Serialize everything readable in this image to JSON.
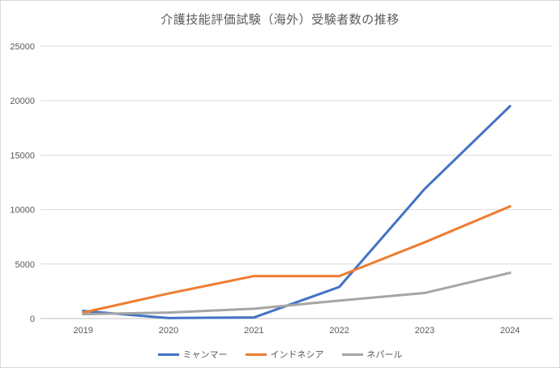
{
  "chart_data": {
    "type": "line",
    "title": "介護技能評価試験（海外）受験者数の推移",
    "categories": [
      "2019",
      "2020",
      "2021",
      "2022",
      "2023",
      "2024"
    ],
    "series": [
      {
        "name": "ミャンマー",
        "color": "#4472C4",
        "values": [
          700,
          50,
          100,
          2900,
          11900,
          19500
        ]
      },
      {
        "name": "インドネシア",
        "color": "#ED7D31",
        "values": [
          550,
          2300,
          3900,
          3900,
          7000,
          10300
        ]
      },
      {
        "name": "ネパール",
        "color": "#A5A5A5",
        "values": [
          400,
          550,
          900,
          1650,
          2350,
          4200
        ]
      }
    ],
    "xlabel": "",
    "ylabel": "",
    "ylim": [
      0,
      25000
    ],
    "y_tick_step": 5000,
    "y_tick_labels": [
      "0",
      "5000",
      "10000",
      "15000",
      "20000",
      "25000"
    ],
    "grid": "horizontal-only",
    "legend_position": "bottom",
    "colors": {
      "title_text": "#595959",
      "axis_text": "#595959",
      "gridline": "#d9d9d9",
      "axis_line": "#bfbfbf",
      "frame_border": "#d9d9d9",
      "background": "#ffffff"
    }
  }
}
